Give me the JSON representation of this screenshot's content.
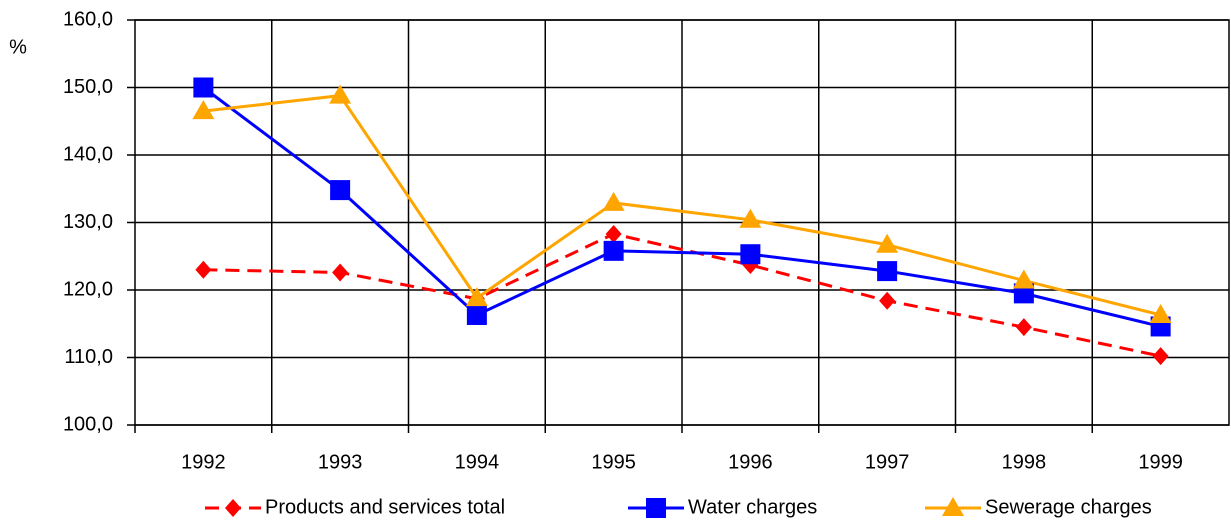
{
  "chart_data": {
    "type": "line",
    "y_label": "%",
    "categories": [
      "1992",
      "1993",
      "1994",
      "1995",
      "1996",
      "1997",
      "1998",
      "1999"
    ],
    "series": [
      {
        "name": "Products and services total",
        "color": "#ff0000",
        "marker": "diamond",
        "dash": true,
        "values": [
          123.0,
          122.6,
          118.7,
          128.3,
          123.7,
          118.4,
          114.5,
          110.2
        ]
      },
      {
        "name": "Water charges",
        "color": "#0000ff",
        "marker": "square",
        "dash": false,
        "values": [
          150.0,
          134.8,
          116.3,
          125.8,
          125.3,
          122.8,
          119.5,
          114.6
        ]
      },
      {
        "name": "Sewerage charges",
        "color": "#ffa500",
        "marker": "triangle",
        "dash": false,
        "values": [
          146.5,
          148.8,
          118.8,
          132.9,
          130.4,
          126.7,
          121.4,
          116.3
        ]
      }
    ],
    "ylim": [
      100,
      160
    ],
    "yticks": [
      {
        "value": 100,
        "label": "100,0"
      },
      {
        "value": 110,
        "label": "110,0"
      },
      {
        "value": 120,
        "label": "120,0"
      },
      {
        "value": 130,
        "label": "130,0"
      },
      {
        "value": 140,
        "label": "140,0"
      },
      {
        "value": 150,
        "label": "150,0"
      },
      {
        "value": 160,
        "label": "160,0"
      }
    ],
    "grid": true,
    "legend": "bottom"
  }
}
